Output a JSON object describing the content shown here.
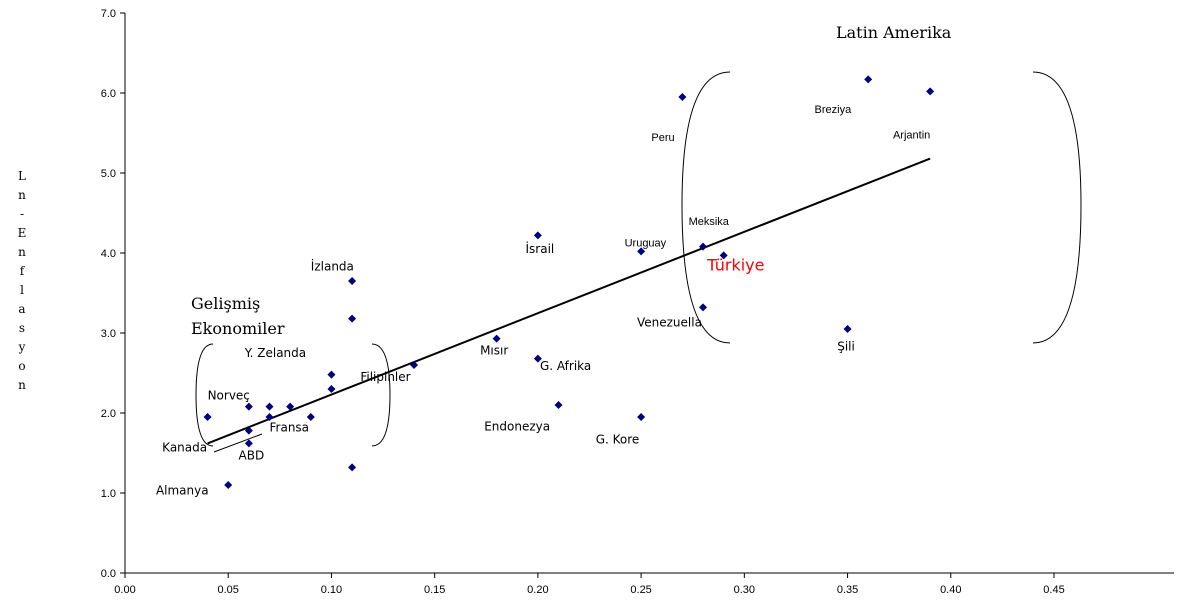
{
  "chart_data": {
    "type": "scatter",
    "title": "",
    "xlabel": "",
    "ylabel": "Ln-Enflasyon",
    "xlim": [
      0.0,
      0.45
    ],
    "ylim": [
      0.0,
      7.0
    ],
    "x_ticks": [
      "0.00",
      "0.05",
      "0.10",
      "0.15",
      "0.20",
      "0.25",
      "0.30",
      "0.35",
      "0.40",
      "0.45"
    ],
    "y_ticks": [
      "0.0",
      "1.0",
      "2.0",
      "3.0",
      "4.0",
      "5.0",
      "6.0",
      "7.0"
    ],
    "marker_color": "#00007f",
    "highlight_color": "#ff0000",
    "points": [
      {
        "x": 0.04,
        "y": 1.95
      },
      {
        "x": 0.05,
        "y": 1.1
      },
      {
        "x": 0.06,
        "y": 2.08
      },
      {
        "x": 0.06,
        "y": 1.78
      },
      {
        "x": 0.06,
        "y": 1.62
      },
      {
        "x": 0.07,
        "y": 2.08
      },
      {
        "x": 0.07,
        "y": 1.95
      },
      {
        "x": 0.08,
        "y": 2.08
      },
      {
        "x": 0.09,
        "y": 1.95
      },
      {
        "x": 0.1,
        "y": 2.48
      },
      {
        "x": 0.1,
        "y": 2.3
      },
      {
        "x": 0.11,
        "y": 3.65
      },
      {
        "x": 0.11,
        "y": 3.18
      },
      {
        "x": 0.11,
        "y": 1.32
      },
      {
        "x": 0.14,
        "y": 2.6
      },
      {
        "x": 0.18,
        "y": 2.93
      },
      {
        "x": 0.2,
        "y": 4.22
      },
      {
        "x": 0.2,
        "y": 2.68
      },
      {
        "x": 0.21,
        "y": 2.1
      },
      {
        "x": 0.25,
        "y": 4.02
      },
      {
        "x": 0.25,
        "y": 1.95
      },
      {
        "x": 0.27,
        "y": 5.95
      },
      {
        "x": 0.28,
        "y": 4.08
      },
      {
        "x": 0.28,
        "y": 3.32
      },
      {
        "x": 0.29,
        "y": 3.97
      },
      {
        "x": 0.35,
        "y": 3.05
      },
      {
        "x": 0.36,
        "y": 6.17
      },
      {
        "x": 0.39,
        "y": 6.02
      }
    ],
    "trendline": {
      "x": [
        0.04,
        0.39
      ],
      "y": [
        1.62,
        5.18
      ]
    },
    "labels": [
      {
        "text": "Norveç",
        "x": 0.04,
        "y": 2.17
      },
      {
        "text": "Kanada",
        "x": 0.018,
        "y": 1.52
      },
      {
        "text": "ABD",
        "x": 0.055,
        "y": 1.42
      },
      {
        "text": "Almanya",
        "x": 0.015,
        "y": 0.98
      },
      {
        "text": "Fransa",
        "x": 0.07,
        "y": 1.77
      },
      {
        "text": "Y. Zelanda",
        "x": 0.058,
        "y": 2.7
      },
      {
        "text": "İzlanda",
        "x": 0.09,
        "y": 3.78
      },
      {
        "text": "Filipinler",
        "x": 0.114,
        "y": 2.4
      },
      {
        "text": "Mısır",
        "x": 0.172,
        "y": 2.73
      },
      {
        "text": "İsrail",
        "x": 0.194,
        "y": 4.0
      },
      {
        "text": "G. Afrika",
        "x": 0.201,
        "y": 2.54
      },
      {
        "text": "Endonezya",
        "x": 0.174,
        "y": 1.78
      },
      {
        "text": "G. Kore",
        "x": 0.228,
        "y": 1.62
      },
      {
        "text": "Uruguay",
        "x": 0.242,
        "y": 4.08
      },
      {
        "text": "Meksika",
        "x": 0.273,
        "y": 4.35
      },
      {
        "text": "Türkiye",
        "x": 0.282,
        "y": 3.78
      },
      {
        "text": "Venezuella",
        "x": 0.248,
        "y": 3.08
      },
      {
        "text": "Şili",
        "x": 0.345,
        "y": 2.78
      },
      {
        "text": "Peru",
        "x": 0.255,
        "y": 5.4
      },
      {
        "text": "Breziya",
        "x": 0.334,
        "y": 5.75
      },
      {
        "text": "Arjantin",
        "x": 0.372,
        "y": 5.43
      }
    ],
    "groups": [
      {
        "text": "Latin Amerika"
      },
      {
        "text": "Gelişmiş Ekonomiler"
      }
    ]
  }
}
